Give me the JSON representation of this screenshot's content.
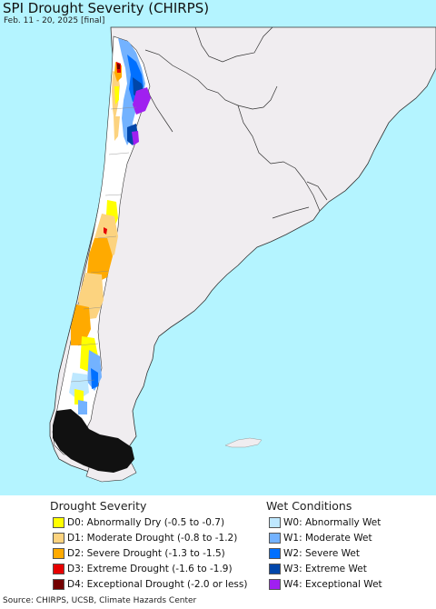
{
  "header": {
    "title": "SPI Drought Severity (CHIRPS)",
    "subtitle": "Feb. 11 - 20, 2025 [final]"
  },
  "legend": {
    "drought_heading": "Drought Severity",
    "wet_heading": "Wet Conditions",
    "drought": [
      {
        "label": "D0: Abnormally Dry (-0.5 to -0.7)",
        "color": "#ffff00"
      },
      {
        "label": "D1: Moderate Drought (-0.8 to -1.2)",
        "color": "#fcd37f"
      },
      {
        "label": "D2: Severe Drought (-1.3 to -1.5)",
        "color": "#ffaa00"
      },
      {
        "label": "D3: Extreme Drought (-1.6 to -1.9)",
        "color": "#e60000"
      },
      {
        "label": "D4: Exceptional Drought (-2.0 or less)",
        "color": "#730000"
      }
    ],
    "wet": [
      {
        "label": "W0: Abnormally Wet",
        "color": "#bee8ff"
      },
      {
        "label": "W1: Moderate Wet",
        "color": "#73b2ff"
      },
      {
        "label": "W2: Severe Wet",
        "color": "#0070ff"
      },
      {
        "label": "W3: Extreme Wet",
        "color": "#0046aa"
      },
      {
        "label": "W4: Exceptional Wet",
        "color": "#a020f0"
      }
    ]
  },
  "footer": {
    "source": "Source: CHIRPS, UCSB, Climate Hazards Center"
  },
  "colors": {
    "ocean": "#b4f4ff",
    "land": "#f0edf0",
    "border": "#222222",
    "chile_base": "#ffffff"
  }
}
